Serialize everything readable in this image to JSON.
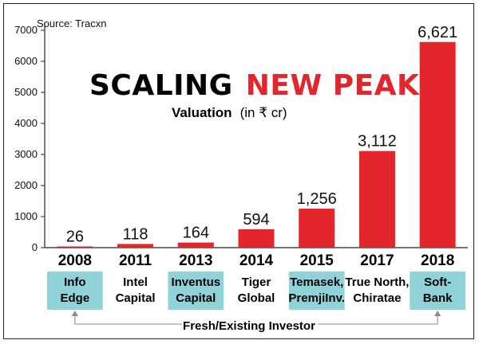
{
  "source": "Source: Tracxn",
  "title": {
    "part1": "SCALING",
    "part2": "NEW PEAKS"
  },
  "subtitle": {
    "bold": "Valuation",
    "normal": "(in ₹ cr)"
  },
  "footer_label": "Fresh/Existing Investor",
  "colors": {
    "bar": "#e3262c",
    "title_accent": "#e3262c",
    "investor_box": "#8fd3d9",
    "axis": "#222222",
    "bracket": "#888888"
  },
  "chart_data": {
    "type": "bar",
    "title": "SCALING NEW PEAKS",
    "subtitle": "Valuation (in ₹ cr)",
    "xlabel": "",
    "ylabel": "",
    "ylim": [
      0,
      7000
    ],
    "yticks": [
      0,
      1000,
      2000,
      3000,
      4000,
      5000,
      6000,
      7000
    ],
    "yticks_labels": [
      "0",
      "1000",
      "2000",
      "3000",
      "4000",
      "5000",
      "6000",
      "7000"
    ],
    "grid": false,
    "categories": [
      "2008",
      "2011",
      "2013",
      "2014",
      "2015",
      "2017",
      "2018"
    ],
    "values": [
      26,
      118,
      164,
      594,
      1256,
      3112,
      6621
    ],
    "value_labels": [
      "26",
      "118",
      "164",
      "594",
      "1,256",
      "3,112",
      "6,621"
    ],
    "investors": [
      {
        "lines": [
          "Info",
          "Edge"
        ],
        "highlight": true
      },
      {
        "lines": [
          "Intel",
          "Capital"
        ],
        "highlight": false
      },
      {
        "lines": [
          "Inventus",
          "Capital"
        ],
        "highlight": true
      },
      {
        "lines": [
          "Tiger",
          "Global"
        ],
        "highlight": false
      },
      {
        "lines": [
          "Temasek,",
          "PremjiInv."
        ],
        "highlight": true
      },
      {
        "lines": [
          "True North,",
          "Chiratae"
        ],
        "highlight": false
      },
      {
        "lines": [
          "Soft-",
          "Bank"
        ],
        "highlight": true
      }
    ]
  }
}
